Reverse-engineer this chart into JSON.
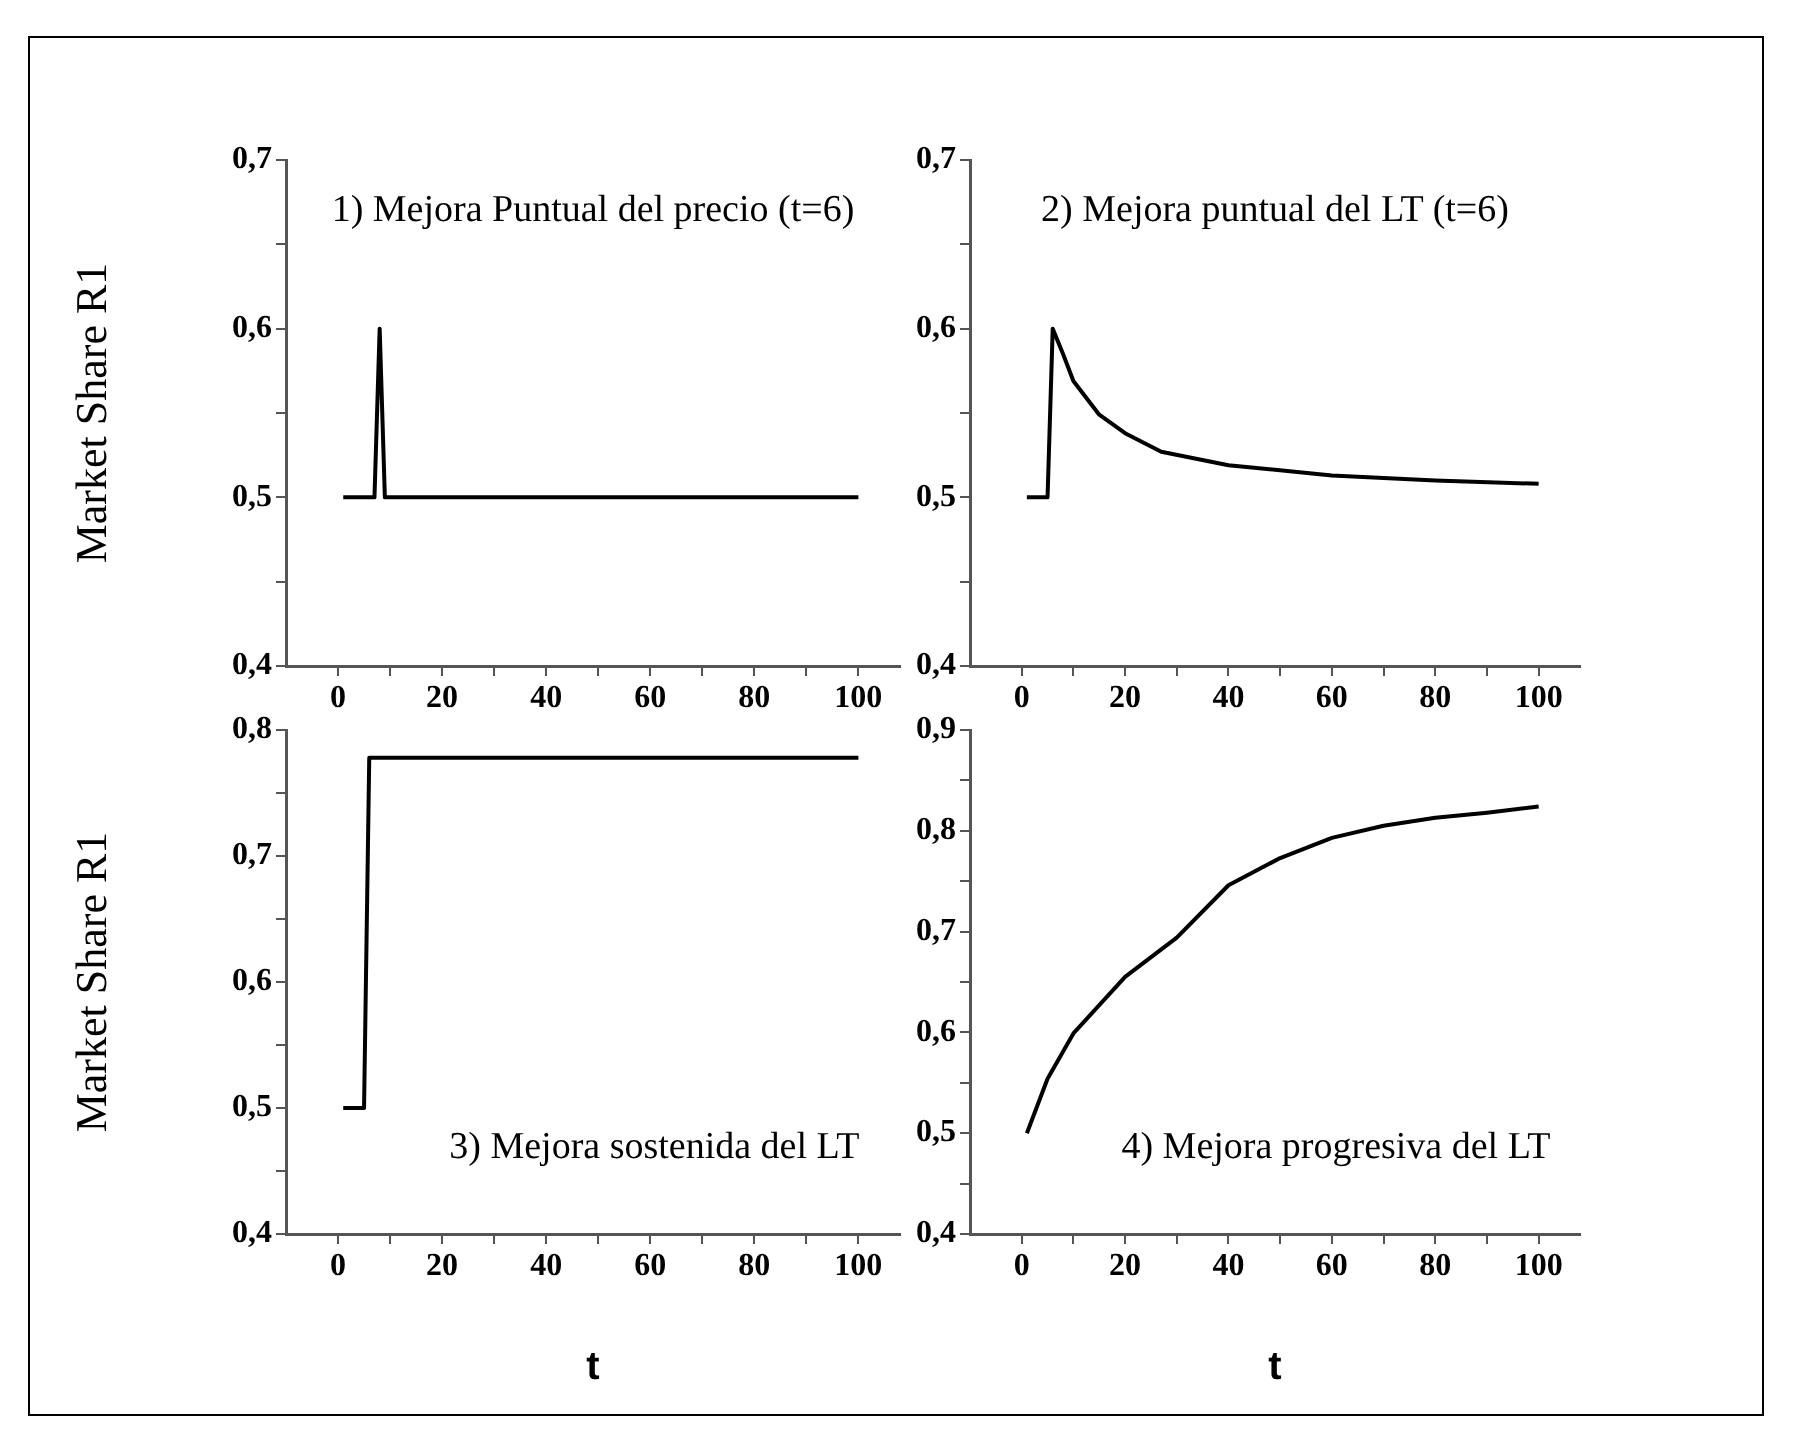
{
  "chart_data": [
    {
      "type": "line",
      "annotations": [
        "1) Mejora Puntual del precio (t=6)"
      ],
      "ylabel": "Market Share R1",
      "color": "#000000",
      "x": [
        1,
        7,
        8,
        9,
        100
      ],
      "values": [
        0.5,
        0.5,
        0.6,
        0.5,
        0.5
      ],
      "xlim": [
        -10,
        108
      ],
      "xticks": [
        0,
        {
          "value": 10,
          "label": null
        },
        20,
        {
          "value": 30,
          "label": null
        },
        40,
        {
          "value": 50,
          "label": null
        },
        60,
        {
          "value": 70,
          "label": null
        },
        80,
        {
          "value": 90,
          "label": null
        },
        100
      ],
      "ylim": [
        0.4,
        0.7
      ],
      "yticks": [
        {
          "value": 0.4,
          "label": "0,4"
        },
        {
          "value": 0.45,
          "label": null
        },
        {
          "value": 0.5,
          "label": "0,5"
        },
        {
          "value": 0.55,
          "label": null
        },
        {
          "value": 0.6,
          "label": "0,6"
        },
        {
          "value": 0.65,
          "label": null
        },
        {
          "value": 0.7,
          "label": "0,7"
        }
      ]
    },
    {
      "type": "line",
      "annotations": [
        "2) Mejora puntual del LT (t=6)"
      ],
      "color": "#000000",
      "x": [
        1,
        5,
        6,
        8,
        10,
        15,
        20,
        27,
        40,
        60,
        80,
        100
      ],
      "values": [
        0.5,
        0.5,
        0.6,
        0.585,
        0.569,
        0.549,
        0.538,
        0.527,
        0.519,
        0.513,
        0.51,
        0.508
      ],
      "xlim": [
        -10,
        108
      ],
      "xticks": [
        0,
        {
          "value": 10,
          "label": null
        },
        20,
        {
          "value": 30,
          "label": null
        },
        40,
        {
          "value": 50,
          "label": null
        },
        60,
        {
          "value": 70,
          "label": null
        },
        80,
        {
          "value": 90,
          "label": null
        },
        100
      ],
      "ylim": [
        0.4,
        0.7
      ],
      "yticks": [
        {
          "value": 0.4,
          "label": "0,4"
        },
        {
          "value": 0.45,
          "label": null
        },
        {
          "value": 0.5,
          "label": "0,5"
        },
        {
          "value": 0.55,
          "label": null
        },
        {
          "value": 0.6,
          "label": "0,6"
        },
        {
          "value": 0.65,
          "label": null
        },
        {
          "value": 0.7,
          "label": "0,7"
        }
      ]
    },
    {
      "type": "line",
      "annotations": [
        "3) Mejora sostenida del LT"
      ],
      "ylabel": "Market Share R1",
      "xlabel": "t",
      "color": "#000000",
      "x": [
        1,
        5,
        6,
        100
      ],
      "values": [
        0.5,
        0.5,
        0.778,
        0.778
      ],
      "xlim": [
        -10,
        108
      ],
      "xticks": [
        0,
        {
          "value": 10,
          "label": null
        },
        20,
        {
          "value": 30,
          "label": null
        },
        40,
        {
          "value": 50,
          "label": null
        },
        60,
        {
          "value": 70,
          "label": null
        },
        80,
        {
          "value": 90,
          "label": null
        },
        100
      ],
      "ylim": [
        0.4,
        0.8
      ],
      "yticks": [
        {
          "value": 0.4,
          "label": "0,4"
        },
        {
          "value": 0.45,
          "label": null
        },
        {
          "value": 0.5,
          "label": "0,5"
        },
        {
          "value": 0.55,
          "label": null
        },
        {
          "value": 0.6,
          "label": "0,6"
        },
        {
          "value": 0.65,
          "label": null
        },
        {
          "value": 0.7,
          "label": "0,7"
        },
        {
          "value": 0.75,
          "label": null
        },
        {
          "value": 0.8,
          "label": "0,8"
        }
      ]
    },
    {
      "type": "line",
      "annotations": [
        "4) Mejora progresiva del LT"
      ],
      "xlabel": "t",
      "color": "#000000",
      "x": [
        1,
        5,
        10,
        20,
        30,
        40,
        50,
        60,
        70,
        80,
        90,
        100
      ],
      "values": [
        0.5,
        0.554,
        0.599,
        0.655,
        0.694,
        0.746,
        0.773,
        0.793,
        0.805,
        0.813,
        0.818,
        0.824
      ],
      "xlim": [
        -10,
        108
      ],
      "xticks": [
        0,
        {
          "value": 10,
          "label": null
        },
        20,
        {
          "value": 30,
          "label": null
        },
        40,
        {
          "value": 50,
          "label": null
        },
        60,
        {
          "value": 70,
          "label": null
        },
        80,
        {
          "value": 90,
          "label": null
        },
        100
      ],
      "ylim": [
        0.4,
        0.9
      ],
      "yticks": [
        {
          "value": 0.4,
          "label": "0,4"
        },
        {
          "value": 0.45,
          "label": null
        },
        {
          "value": 0.5,
          "label": "0,5"
        },
        {
          "value": 0.55,
          "label": null
        },
        {
          "value": 0.6,
          "label": "0,6"
        },
        {
          "value": 0.65,
          "label": null
        },
        {
          "value": 0.7,
          "label": "0,7"
        },
        {
          "value": 0.75,
          "label": null
        },
        {
          "value": 0.8,
          "label": "0,8"
        },
        {
          "value": 0.85,
          "label": null
        },
        {
          "value": 0.9,
          "label": "0,9"
        }
      ]
    }
  ]
}
